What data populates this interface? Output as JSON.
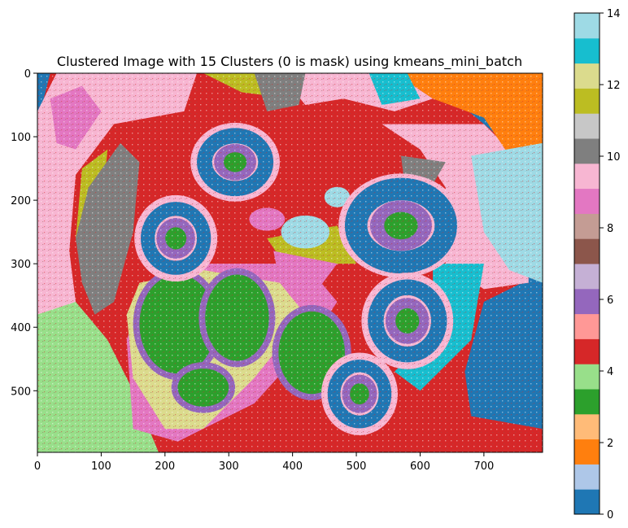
{
  "chart_data": {
    "type": "heatmap",
    "title": "Clustered Image with 15 Clusters (0 is mask) using kmeans_mini_batch",
    "xlabel": "",
    "ylabel": "",
    "xlim": [
      0,
      792
    ],
    "ylim": [
      597,
      0
    ],
    "x_ticks": [
      0,
      100,
      200,
      300,
      400,
      500,
      600,
      700
    ],
    "y_ticks": [
      0,
      100,
      200,
      300,
      400,
      500
    ],
    "colorbar": {
      "vmin": 0,
      "vmax": 14,
      "ticks": [
        0,
        2,
        4,
        6,
        8,
        10,
        12,
        14
      ],
      "colormap": "tab20",
      "colors": [
        "#1f77b4",
        "#aec7e8",
        "#ff7f0e",
        "#ffbb78",
        "#2ca02c",
        "#98df8a",
        "#d62728",
        "#ff9896",
        "#9467bd",
        "#c5b0d5",
        "#8c564b",
        "#c49c94",
        "#e377c2",
        "#f7b6d2",
        "#7f7f7f",
        "#c7c7c7",
        "#bcbd22",
        "#dbdb8d",
        "#17becf",
        "#9edae5"
      ]
    },
    "regions": {
      "rings": [
        {
          "cx": 310,
          "cy": 140,
          "rx": 60,
          "ry": 52,
          "value": 0
        },
        {
          "cx": 217,
          "cy": 260,
          "rx": 55,
          "ry": 58,
          "value": 0
        },
        {
          "cx": 570,
          "cy": 240,
          "rx": 88,
          "ry": 72,
          "value": 0
        },
        {
          "cx": 580,
          "cy": 390,
          "rx": 62,
          "ry": 66,
          "value": 0
        },
        {
          "cx": 505,
          "cy": 505,
          "rx": 50,
          "ry": 55,
          "value": 0
        }
      ],
      "green_lobes": [
        {
          "cx": 220,
          "cy": 395,
          "rx": 60,
          "ry": 78
        },
        {
          "cx": 313,
          "cy": 385,
          "rx": 50,
          "ry": 68
        },
        {
          "cx": 430,
          "cy": 440,
          "rx": 52,
          "ry": 65
        },
        {
          "cx": 260,
          "cy": 495,
          "rx": 40,
          "ry": 30
        }
      ]
    }
  }
}
